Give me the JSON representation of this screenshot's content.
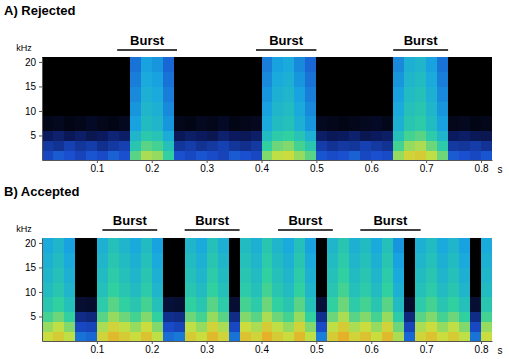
{
  "chart_data": [
    {
      "type": "heatmap",
      "title": "A) Rejected",
      "x_label": "s",
      "y_label": "kHz",
      "xlim": [
        0,
        0.82
      ],
      "xticks": [
        0.1,
        0.2,
        0.3,
        0.4,
        0.5,
        0.6,
        0.7,
        0.8
      ],
      "ylim": [
        0,
        21
      ],
      "yticks": [
        5,
        10,
        15,
        20
      ],
      "zlim": [
        0,
        100
      ],
      "annotations": [
        {
          "text": "Burst",
          "x": [
            0.137,
            0.246
          ]
        },
        {
          "text": "Burst",
          "x": [
            0.39,
            0.5
          ]
        },
        {
          "text": "Burst",
          "x": [
            0.64,
            0.74
          ]
        }
      ],
      "x_bins": [
        0,
        0.02,
        0.04,
        0.06,
        0.08,
        0.1,
        0.12,
        0.14,
        0.16,
        0.18,
        0.2,
        0.22,
        0.24,
        0.26,
        0.28,
        0.3,
        0.32,
        0.34,
        0.36,
        0.38,
        0.4,
        0.42,
        0.44,
        0.46,
        0.48,
        0.5,
        0.52,
        0.54,
        0.56,
        0.58,
        0.6,
        0.62,
        0.64,
        0.66,
        0.68,
        0.7,
        0.72,
        0.74,
        0.76,
        0.78,
        0.8,
        0.82
      ],
      "y_bins": [
        0,
        2,
        4,
        6,
        9,
        12,
        15,
        18,
        21
      ],
      "values": [
        [
          28,
          32,
          30,
          27,
          31,
          29,
          33,
          30,
          64,
          72,
          70,
          60,
          30,
          28,
          31,
          29,
          27,
          32,
          30,
          28,
          68,
          74,
          76,
          70,
          64,
          31,
          29,
          30,
          33,
          28,
          30,
          29,
          70,
          78,
          80,
          74,
          66,
          32,
          30,
          28,
          31
        ],
        [
          24,
          22,
          26,
          23,
          25,
          21,
          24,
          26,
          56,
          64,
          62,
          54,
          23,
          25,
          22,
          24,
          26,
          23,
          21,
          24,
          60,
          66,
          68,
          62,
          56,
          25,
          22,
          24,
          23,
          26,
          24,
          22,
          62,
          70,
          72,
          66,
          58,
          24,
          23,
          25,
          22
        ],
        [
          15,
          17,
          14,
          16,
          13,
          15,
          18,
          16,
          50,
          57,
          55,
          47,
          14,
          16,
          15,
          13,
          17,
          15,
          14,
          16,
          52,
          58,
          60,
          55,
          48,
          16,
          14,
          15,
          17,
          13,
          15,
          16,
          54,
          62,
          64,
          58,
          50,
          15,
          16,
          14,
          13
        ],
        [
          4,
          5,
          3,
          4,
          6,
          4,
          3,
          5,
          44,
          52,
          50,
          42,
          4,
          3,
          5,
          4,
          6,
          3,
          4,
          5,
          46,
          52,
          54,
          48,
          42,
          5,
          4,
          3,
          4,
          5,
          6,
          4,
          48,
          56,
          58,
          52,
          44,
          4,
          5,
          3,
          4
        ],
        [
          0,
          0,
          0,
          0,
          0,
          0,
          0,
          0,
          42,
          50,
          48,
          40,
          0,
          0,
          0,
          0,
          0,
          0,
          0,
          0,
          44,
          50,
          52,
          46,
          40,
          0,
          0,
          0,
          0,
          0,
          0,
          0,
          46,
          54,
          56,
          50,
          42,
          0,
          0,
          0,
          0
        ],
        [
          0,
          0,
          0,
          0,
          0,
          0,
          0,
          0,
          40,
          48,
          46,
          38,
          0,
          0,
          0,
          0,
          0,
          0,
          0,
          0,
          42,
          48,
          50,
          44,
          38,
          0,
          0,
          0,
          0,
          0,
          0,
          0,
          44,
          52,
          54,
          48,
          40,
          0,
          0,
          0,
          0
        ],
        [
          0,
          0,
          0,
          0,
          0,
          0,
          0,
          0,
          38,
          46,
          44,
          36,
          0,
          0,
          0,
          0,
          0,
          0,
          0,
          0,
          40,
          46,
          48,
          42,
          36,
          0,
          0,
          0,
          0,
          0,
          0,
          0,
          42,
          50,
          52,
          46,
          38,
          0,
          0,
          0,
          0
        ],
        [
          0,
          0,
          0,
          0,
          0,
          0,
          0,
          0,
          36,
          44,
          42,
          34,
          0,
          0,
          0,
          0,
          0,
          0,
          0,
          0,
          38,
          44,
          46,
          40,
          34,
          0,
          0,
          0,
          0,
          0,
          0,
          0,
          40,
          48,
          50,
          44,
          36,
          0,
          0,
          0,
          0
        ]
      ]
    },
    {
      "type": "heatmap",
      "title": "B) Accepted",
      "x_label": "s",
      "y_label": "kHz",
      "xlim": [
        0,
        0.82
      ],
      "xticks": [
        0.1,
        0.2,
        0.3,
        0.4,
        0.5,
        0.6,
        0.7,
        0.8
      ],
      "ylim": [
        0,
        21
      ],
      "yticks": [
        5,
        10,
        15,
        20
      ],
      "zlim": [
        0,
        100
      ],
      "annotations": [
        {
          "text": "Burst",
          "x": [
            0.11,
            0.21
          ]
        },
        {
          "text": "Burst",
          "x": [
            0.26,
            0.36
          ]
        },
        {
          "text": "Burst",
          "x": [
            0.43,
            0.53
          ]
        },
        {
          "text": "Burst",
          "x": [
            0.58,
            0.69
          ]
        }
      ],
      "x_bins": [
        0,
        0.02,
        0.04,
        0.06,
        0.08,
        0.1,
        0.12,
        0.14,
        0.16,
        0.18,
        0.2,
        0.22,
        0.24,
        0.26,
        0.28,
        0.3,
        0.32,
        0.34,
        0.36,
        0.38,
        0.4,
        0.42,
        0.44,
        0.46,
        0.48,
        0.5,
        0.52,
        0.54,
        0.56,
        0.58,
        0.6,
        0.62,
        0.64,
        0.66,
        0.68,
        0.7,
        0.72,
        0.74,
        0.76,
        0.78,
        0.8,
        0.82
      ],
      "y_bins": [
        0,
        2,
        4,
        6,
        9,
        12,
        15,
        18,
        21
      ],
      "values": [
        [
          76,
          80,
          74,
          36,
          34,
          78,
          84,
          80,
          76,
          82,
          74,
          35,
          37,
          80,
          76,
          84,
          78,
          36,
          82,
          78,
          86,
          80,
          76,
          84,
          74,
          38,
          80,
          86,
          78,
          82,
          76,
          84,
          72,
          34,
          78,
          82,
          76,
          80,
          74,
          36,
          76
        ],
        [
          70,
          74,
          68,
          28,
          27,
          72,
          78,
          74,
          70,
          76,
          68,
          29,
          27,
          74,
          70,
          78,
          72,
          28,
          76,
          72,
          80,
          74,
          70,
          78,
          68,
          29,
          74,
          80,
          72,
          76,
          70,
          78,
          66,
          27,
          72,
          76,
          70,
          74,
          68,
          28,
          70
        ],
        [
          62,
          66,
          60,
          20,
          19,
          64,
          70,
          66,
          62,
          68,
          60,
          21,
          20,
          66,
          62,
          70,
          64,
          20,
          68,
          64,
          72,
          66,
          62,
          70,
          60,
          21,
          66,
          72,
          64,
          68,
          62,
          70,
          58,
          19,
          64,
          68,
          62,
          66,
          60,
          20,
          62
        ],
        [
          56,
          60,
          54,
          8,
          7,
          58,
          64,
          60,
          56,
          62,
          54,
          9,
          8,
          60,
          56,
          64,
          58,
          8,
          62,
          58,
          66,
          60,
          56,
          64,
          54,
          9,
          60,
          66,
          58,
          62,
          56,
          64,
          52,
          7,
          58,
          62,
          56,
          60,
          54,
          8,
          56
        ],
        [
          52,
          56,
          50,
          0,
          0,
          54,
          60,
          56,
          52,
          58,
          50,
          0,
          0,
          56,
          52,
          60,
          54,
          0,
          58,
          54,
          62,
          56,
          52,
          60,
          50,
          0,
          56,
          62,
          54,
          58,
          52,
          60,
          48,
          0,
          54,
          58,
          52,
          56,
          50,
          0,
          52
        ],
        [
          50,
          54,
          48,
          0,
          0,
          52,
          58,
          54,
          50,
          56,
          48,
          0,
          0,
          54,
          50,
          58,
          52,
          0,
          56,
          52,
          60,
          54,
          50,
          58,
          48,
          0,
          54,
          60,
          52,
          56,
          50,
          58,
          46,
          0,
          52,
          56,
          50,
          54,
          48,
          0,
          50
        ],
        [
          48,
          52,
          46,
          0,
          0,
          50,
          56,
          52,
          48,
          54,
          46,
          0,
          0,
          52,
          48,
          56,
          50,
          0,
          54,
          50,
          58,
          52,
          48,
          56,
          46,
          0,
          52,
          58,
          50,
          54,
          48,
          56,
          44,
          0,
          50,
          54,
          48,
          52,
          46,
          0,
          48
        ],
        [
          46,
          50,
          44,
          0,
          0,
          48,
          54,
          50,
          46,
          52,
          44,
          0,
          0,
          50,
          46,
          54,
          48,
          0,
          52,
          48,
          56,
          50,
          46,
          54,
          44,
          0,
          50,
          56,
          48,
          52,
          46,
          54,
          42,
          0,
          48,
          52,
          46,
          50,
          44,
          0,
          46
        ]
      ]
    }
  ]
}
